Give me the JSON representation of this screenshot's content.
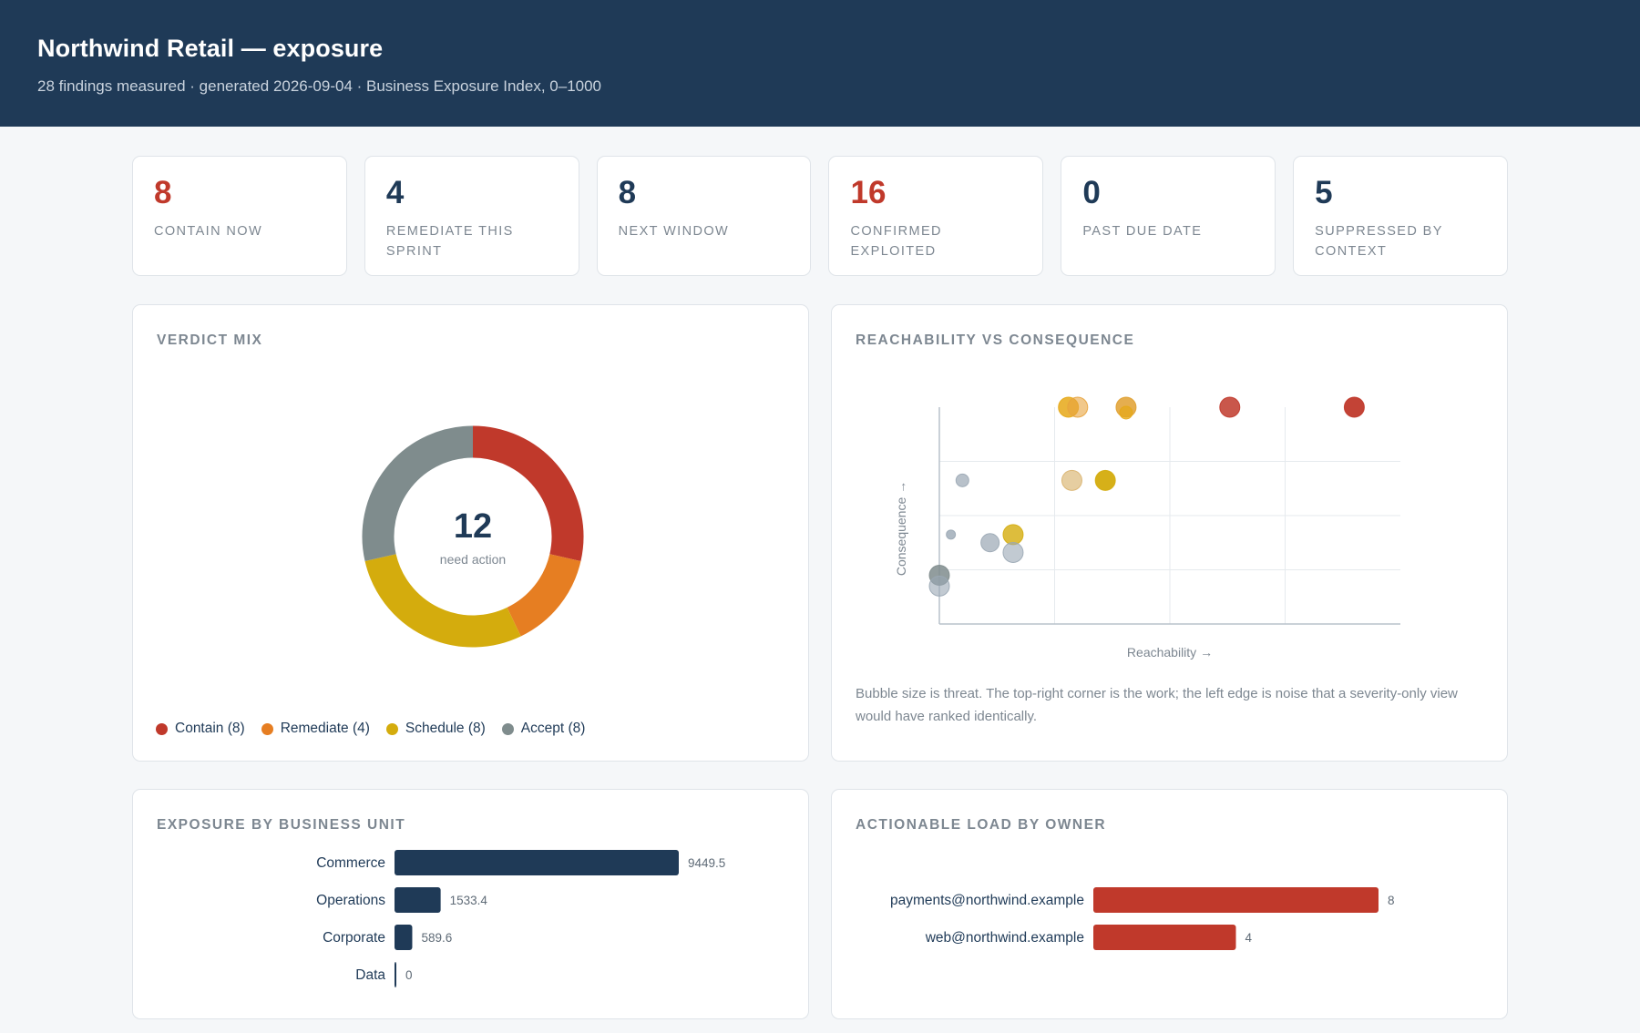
{
  "header": {
    "title": "Northwind Retail — exposure",
    "subtitle": "28 findings measured · generated 2026-09-04 · Business Exposure Index, 0–1000"
  },
  "kpis": [
    {
      "value": "8",
      "label": "Contain now",
      "accent": "#c0392b"
    },
    {
      "value": "4",
      "label": "Remediate this sprint",
      "accent": "#1f3a57"
    },
    {
      "value": "8",
      "label": "Next window",
      "accent": "#1f3a57"
    },
    {
      "value": "16",
      "label": "Confirmed exploited",
      "accent": "#c0392b"
    },
    {
      "value": "0",
      "label": "Past due date",
      "accent": "#1f3a57"
    },
    {
      "value": "5",
      "label": "Suppressed by context",
      "accent": "#1f3a57"
    }
  ],
  "verdict": {
    "title": "Verdict mix",
    "center_value": "12",
    "center_label": "need action",
    "legend": [
      {
        "label": "Contain (8)",
        "color": "#c0392b"
      },
      {
        "label": "Remediate (4)",
        "color": "#e67e22"
      },
      {
        "label": "Schedule (8)",
        "color": "#d4ac0d"
      },
      {
        "label": "Accept (8)",
        "color": "#7f8c8d"
      }
    ]
  },
  "scatter": {
    "title": "Reachability vs consequence",
    "caption": "Bubble size is threat. The top-right corner is the work; the left edge is noise that a severity-only view would have ranked identically."
  },
  "bu": {
    "title": "Exposure by business unit"
  },
  "owner": {
    "title": "Actionable load by owner"
  },
  "chart_data": [
    {
      "type": "pie",
      "title": "Verdict mix",
      "categories": [
        "Contain",
        "Remediate",
        "Schedule",
        "Accept"
      ],
      "values": [
        8,
        4,
        8,
        8
      ],
      "colors": [
        "#c0392b",
        "#e67e22",
        "#d4ac0d",
        "#7f8c8d"
      ],
      "donut": true,
      "legend": "bottom"
    },
    {
      "type": "scatter",
      "title": "Reachability vs consequence",
      "xlabel": "Reachability →",
      "ylabel": "Consequence →",
      "xlim": [
        0,
        4
      ],
      "ylim": [
        0,
        4
      ],
      "grid": true,
      "points": [
        {
          "x": 1.12,
          "y": 4.0,
          "size": 11,
          "color": "#e6a817",
          "opacity": 0.85
        },
        {
          "x": 1.2,
          "y": 4.0,
          "size": 11,
          "color": "#e8a33d",
          "opacity": 0.6
        },
        {
          "x": 1.62,
          "y": 4.0,
          "size": 11,
          "color": "#e0a030",
          "opacity": 0.85
        },
        {
          "x": 1.62,
          "y": 3.9,
          "size": 7,
          "color": "#e6a817",
          "opacity": 0.7
        },
        {
          "x": 2.52,
          "y": 4.0,
          "size": 11,
          "color": "#c0392b",
          "opacity": 0.85
        },
        {
          "x": 3.6,
          "y": 4.0,
          "size": 11,
          "color": "#c0392b",
          "opacity": 0.95
        },
        {
          "x": 0.2,
          "y": 2.65,
          "size": 7,
          "color": "#9aa7b4",
          "opacity": 0.7
        },
        {
          "x": 1.15,
          "y": 2.65,
          "size": 11,
          "color": "#d9b36e",
          "opacity": 0.65
        },
        {
          "x": 1.44,
          "y": 2.65,
          "size": 11,
          "color": "#d4ac0d",
          "opacity": 0.95
        },
        {
          "x": 0.1,
          "y": 1.65,
          "size": 5,
          "color": "#9aa7b4",
          "opacity": 0.8
        },
        {
          "x": 0.44,
          "y": 1.5,
          "size": 10,
          "color": "#9aa7b4",
          "opacity": 0.7
        },
        {
          "x": 0.64,
          "y": 1.65,
          "size": 11,
          "color": "#d4ac0d",
          "opacity": 0.8
        },
        {
          "x": 0.64,
          "y": 1.32,
          "size": 11,
          "color": "#9aa7b4",
          "opacity": 0.6
        },
        {
          "x": 0.0,
          "y": 0.9,
          "size": 11,
          "color": "#7f8c8d",
          "opacity": 0.85
        },
        {
          "x": 0.0,
          "y": 0.7,
          "size": 11,
          "color": "#9aa7b4",
          "opacity": 0.6
        }
      ]
    },
    {
      "type": "bar",
      "orientation": "horizontal",
      "title": "Exposure by business unit",
      "categories": [
        "Commerce",
        "Operations",
        "Corporate",
        "Data"
      ],
      "values": [
        9449.5,
        1533.4,
        589.6,
        0
      ],
      "labels": [
        "9449.5",
        "1533.4",
        "589.6",
        "0"
      ],
      "color": "#1f3a57"
    },
    {
      "type": "bar",
      "orientation": "horizontal",
      "title": "Actionable load by owner",
      "categories": [
        "payments@northwind.example",
        "web@northwind.example"
      ],
      "values": [
        8,
        4
      ],
      "labels": [
        "8",
        "4"
      ],
      "color": "#c0392b"
    }
  ]
}
